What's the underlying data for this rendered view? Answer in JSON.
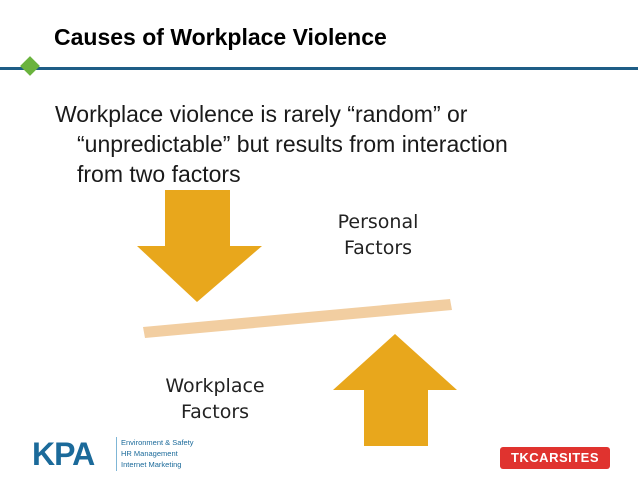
{
  "slide": {
    "title": "Causes of Workplace Violence",
    "body_lines": [
      "Workplace violence is rarely “random” or",
      "“unpredictable” but results from interaction",
      "from two factors"
    ]
  },
  "diagram": {
    "personal_label": [
      "Personal",
      "Factors"
    ],
    "workplace_label": [
      "Workplace",
      "Factors"
    ],
    "colors": {
      "arrow": "#e8a71c",
      "balance_bar": "#f2cea1",
      "title_rule": "#1e5d86",
      "diamond": "#6ab33e"
    }
  },
  "footer": {
    "kpa_logo_text": "KPA",
    "kpa_services": [
      "Environment & Safety",
      "HR Management",
      "Internet Marketing"
    ],
    "tk_logo_text": "TKCARSITES"
  }
}
